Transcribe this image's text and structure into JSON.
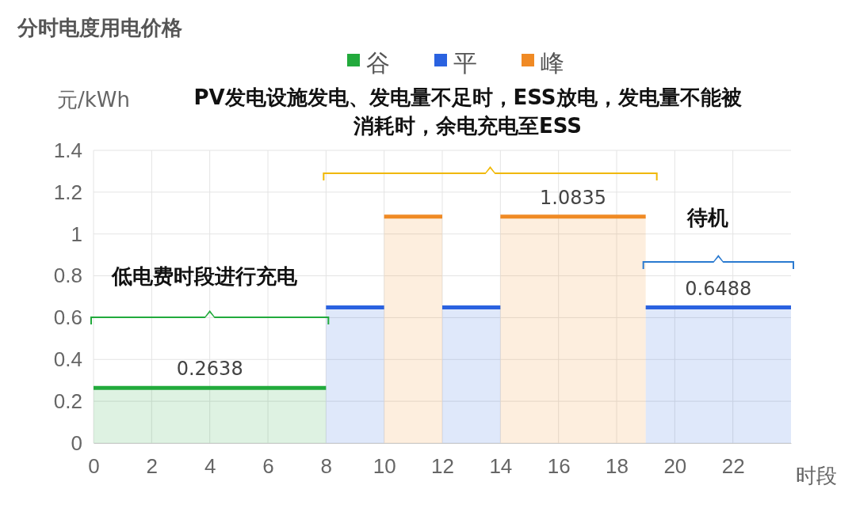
{
  "chart_data": {
    "type": "area",
    "title": "分时电度用电价格",
    "ylabel": "元/kWh",
    "xlabel": "时段",
    "xlim": [
      0,
      24
    ],
    "xticks": [
      0,
      2,
      4,
      6,
      8,
      10,
      12,
      14,
      16,
      18,
      20,
      22
    ],
    "ylim": [
      0,
      1.4
    ],
    "yticks": [
      0,
      0.2,
      0.4,
      0.6,
      0.8,
      1,
      1.2,
      1.4
    ],
    "grid": true,
    "legend": "top",
    "series": [
      {
        "name": "谷",
        "color": "#22aa3c",
        "x": [
          0,
          4,
          8
        ],
        "values": [
          0.2638,
          0.2638,
          0.2638
        ],
        "value_labels": [
          null,
          "0.2638",
          null
        ]
      },
      {
        "name": "平",
        "color": "#2a62e0",
        "x": [
          8,
          10,
          null,
          12,
          14,
          null,
          19,
          21.5,
          24
        ],
        "values": [
          0.6488,
          0.6488,
          null,
          0.6488,
          0.6488,
          null,
          0.6488,
          0.6488,
          0.6488
        ],
        "value_labels": [
          null,
          null,
          null,
          null,
          null,
          null,
          null,
          "0.6488",
          null
        ]
      },
      {
        "name": "峰",
        "color": "#f08a24",
        "x": [
          10,
          12,
          null,
          14,
          16.5,
          19
        ],
        "values": [
          1.0835,
          1.0835,
          null,
          1.0835,
          1.0835,
          1.0835
        ],
        "value_labels": [
          null,
          null,
          null,
          null,
          "1.0835",
          null
        ]
      }
    ],
    "annotations": [
      "低电费时段进行充电",
      "PV发电设施发电、发电量不足时，ESS放电，发电量不能被消耗时，余电充电至ESS",
      "待机"
    ]
  }
}
